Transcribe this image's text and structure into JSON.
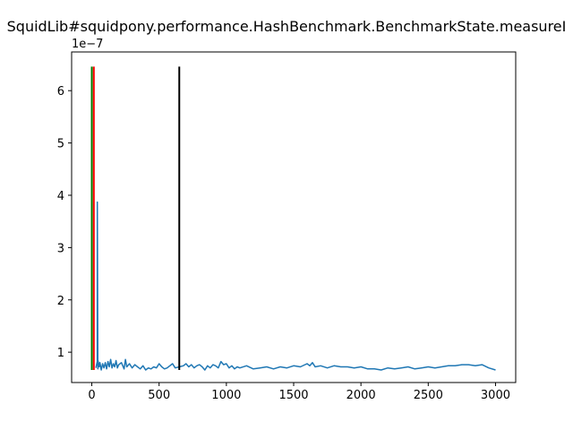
{
  "chart_data": {
    "type": "line",
    "title": "SquidLib#squidpony.performance.HashBenchmark.BenchmarkState.measureI",
    "y_scale_label": "1e−7",
    "xlabel": "",
    "ylabel": "",
    "xlim": [
      -150,
      3150
    ],
    "ylim": [
      0.42,
      6.74
    ],
    "x_ticks": [
      0,
      500,
      1000,
      1500,
      2000,
      2500,
      3000
    ],
    "y_ticks": [
      1,
      2,
      3,
      4,
      5,
      6
    ],
    "grid": false,
    "vertical_markers": [
      {
        "x": 0,
        "y_range": [
          0.66,
          6.46
        ],
        "color": "#008000"
      },
      {
        "x": 15,
        "y_range": [
          0.66,
          6.46
        ],
        "color": "#ff0000"
      },
      {
        "x": 650,
        "y_range": [
          0.66,
          6.46
        ],
        "color": "#000000"
      }
    ],
    "series": [
      {
        "color": "#1f77b4",
        "x": [
          30,
          40,
          41,
          45,
          46,
          55,
          60,
          70,
          80,
          90,
          100,
          110,
          120,
          130,
          140,
          150,
          160,
          170,
          180,
          190,
          200,
          220,
          240,
          250,
          260,
          280,
          300,
          320,
          340,
          360,
          380,
          400,
          420,
          440,
          460,
          480,
          500,
          520,
          540,
          560,
          580,
          600,
          620,
          650,
          680,
          700,
          720,
          740,
          760,
          780,
          800,
          820,
          840,
          860,
          880,
          900,
          920,
          940,
          960,
          980,
          1000,
          1020,
          1040,
          1060,
          1080,
          1100,
          1150,
          1200,
          1250,
          1300,
          1350,
          1400,
          1450,
          1500,
          1550,
          1600,
          1620,
          1640,
          1660,
          1700,
          1750,
          1800,
          1850,
          1900,
          1950,
          2000,
          2050,
          2100,
          2150,
          2200,
          2250,
          2300,
          2350,
          2400,
          2450,
          2500,
          2550,
          2600,
          2650,
          2700,
          2750,
          2800,
          2850,
          2900,
          2950,
          3000
        ],
        "values": [
          0.7,
          0.82,
          3.87,
          0.68,
          0.84,
          0.72,
          0.8,
          0.66,
          0.78,
          0.7,
          0.8,
          0.68,
          0.82,
          0.72,
          0.86,
          0.7,
          0.78,
          0.72,
          0.84,
          0.7,
          0.76,
          0.8,
          0.68,
          0.86,
          0.72,
          0.78,
          0.7,
          0.76,
          0.72,
          0.68,
          0.74,
          0.66,
          0.7,
          0.68,
          0.72,
          0.7,
          0.78,
          0.72,
          0.68,
          0.7,
          0.74,
          0.78,
          0.7,
          0.72,
          0.74,
          0.78,
          0.72,
          0.76,
          0.7,
          0.74,
          0.76,
          0.72,
          0.66,
          0.74,
          0.7,
          0.76,
          0.74,
          0.7,
          0.82,
          0.76,
          0.78,
          0.7,
          0.74,
          0.68,
          0.72,
          0.7,
          0.74,
          0.68,
          0.7,
          0.72,
          0.68,
          0.72,
          0.7,
          0.74,
          0.72,
          0.78,
          0.74,
          0.8,
          0.72,
          0.74,
          0.7,
          0.74,
          0.72,
          0.72,
          0.7,
          0.72,
          0.68,
          0.68,
          0.66,
          0.7,
          0.68,
          0.7,
          0.72,
          0.68,
          0.7,
          0.72,
          0.7,
          0.72,
          0.74,
          0.74,
          0.76,
          0.76,
          0.74,
          0.76,
          0.7,
          0.66
        ]
      }
    ]
  }
}
